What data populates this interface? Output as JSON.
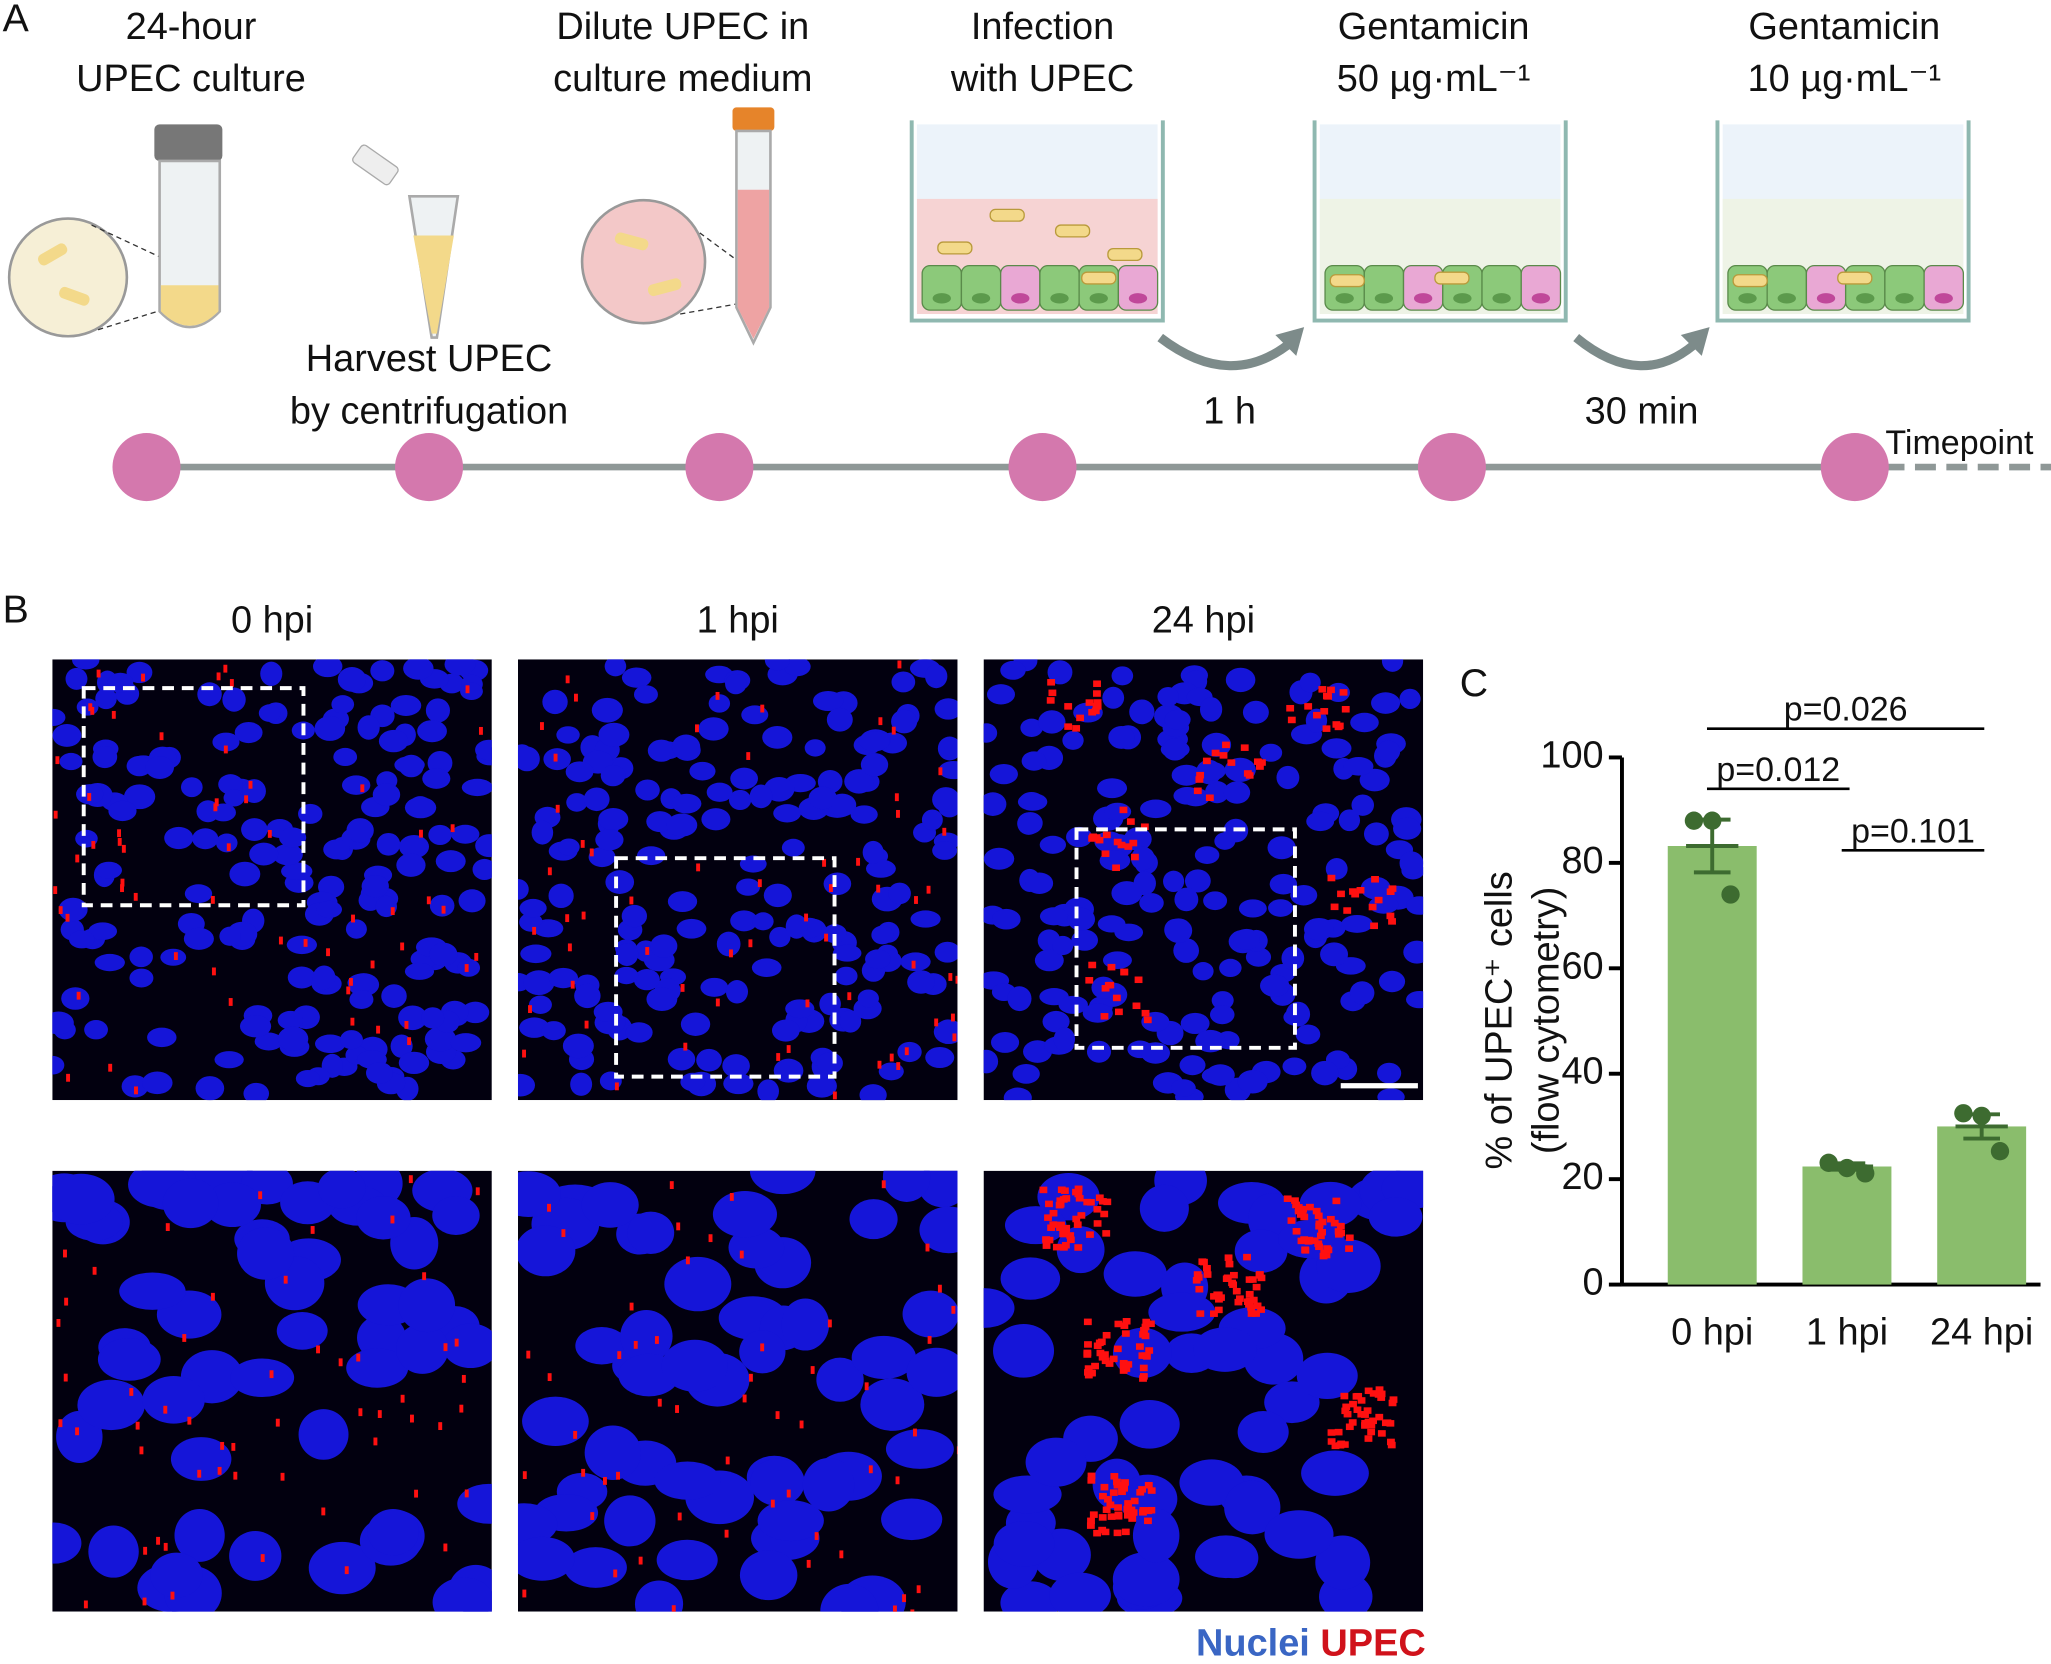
{
  "panel_a": {
    "label": "A",
    "steps": [
      {
        "lines": [
          "24-hour",
          "UPEC culture"
        ]
      },
      {
        "lines": [
          "Harvest UPEC",
          "by centrifugation"
        ]
      },
      {
        "lines": [
          "Dilute UPEC in",
          "culture medium"
        ]
      },
      {
        "lines": [
          "Infection",
          "with UPEC"
        ]
      },
      {
        "lines": [
          "Gentamicin",
          "50 µg·mL⁻¹"
        ]
      },
      {
        "lines": [
          "Gentamicin",
          "10 µg·mL⁻¹"
        ]
      }
    ],
    "intervals": [
      "1 h",
      "30 min"
    ],
    "timepoint": "Timepoint"
  },
  "panel_b": {
    "label": "B",
    "columns": [
      "0 hpi",
      "1 hpi",
      "24 hpi"
    ],
    "legend": [
      {
        "text": "Nuclei",
        "color": "#3a66c4"
      },
      {
        "text": "UPEC",
        "color": "#d0121b"
      }
    ]
  },
  "chart_data": {
    "type": "bar",
    "panel_label": "C",
    "ylabel": [
      "% of UPEC⁺ cells",
      "(flow cytometry)"
    ],
    "categories": [
      "0 hpi",
      "1 hpi",
      "24 hpi"
    ],
    "values": [
      83.2,
      22.4,
      30
    ],
    "errors": [
      5,
      0.6,
      2.3
    ],
    "points": [
      [
        88,
        88,
        74
      ],
      [
        23.1,
        22.1,
        21.1
      ],
      [
        32.5,
        32,
        25.3
      ]
    ],
    "color": "#8abd6c",
    "point_color": "#3d6b30",
    "ylim": [
      0,
      100
    ],
    "yticks": [
      0,
      20,
      40,
      60,
      80,
      100
    ],
    "comparisons": [
      {
        "groups": [
          "0 hpi",
          "24 hpi"
        ],
        "label": "p=0.026"
      },
      {
        "groups": [
          "0 hpi",
          "1 hpi"
        ],
        "label": "p=0.012"
      },
      {
        "groups": [
          "1 hpi",
          "24 hpi"
        ],
        "label": "p=0.101"
      }
    ]
  }
}
